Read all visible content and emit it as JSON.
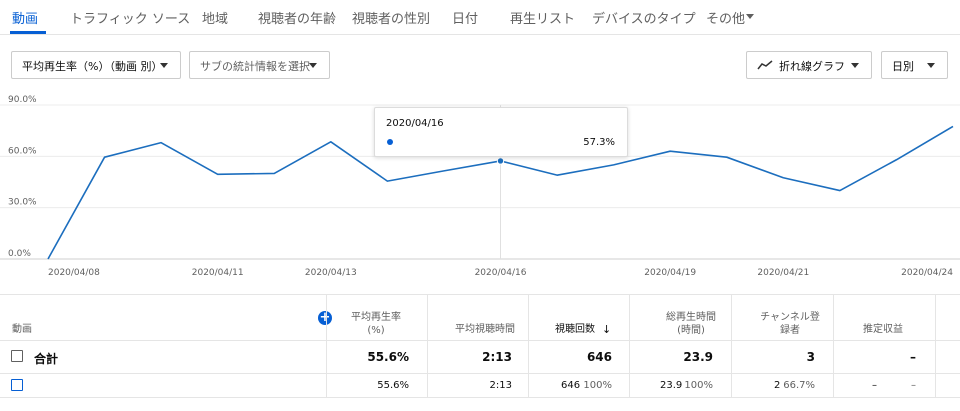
{
  "tabs": [
    {
      "label": "動画",
      "active": true
    },
    {
      "label": "トラフィック ソース"
    },
    {
      "label": "地域"
    },
    {
      "label": "視聴者の年齢"
    },
    {
      "label": "視聴者の性別"
    },
    {
      "label": "日付"
    },
    {
      "label": "再生リスト"
    },
    {
      "label": "デバイスのタイプ"
    },
    {
      "label": "その他"
    }
  ],
  "filters": {
    "metric": "平均再生率（%）（動画 別）",
    "secondary_placeholder": "サブの統計情報を選択",
    "chart_type": "折れ線グラフ",
    "granularity": "日別"
  },
  "tooltip": {
    "date": "2020/04/16",
    "value": "57.3%"
  },
  "chart_data": {
    "type": "line",
    "x": [
      "2020/04/08",
      "2020/04/09",
      "2020/04/10",
      "2020/04/11",
      "2020/04/12",
      "2020/04/13",
      "2020/04/14",
      "2020/04/15",
      "2020/04/16",
      "2020/04/17",
      "2020/04/18",
      "2020/04/19",
      "2020/04/20",
      "2020/04/21",
      "2020/04/22",
      "2020/04/23",
      "2020/04/24"
    ],
    "y": [
      0,
      59.5,
      68,
      49.5,
      50,
      68.5,
      45.5,
      51.5,
      57.3,
      49,
      55,
      63,
      59.5,
      47.5,
      40,
      58,
      77.5
    ],
    "xtick_labels": [
      "2020/04/08",
      "2020/04/11",
      "2020/04/13",
      "2020/04/16",
      "2020/04/19",
      "2020/04/21",
      "2020/04/24"
    ],
    "ytick_labels": [
      "0.0%",
      "30.0%",
      "60.0%",
      "90.0%"
    ],
    "ylim": [
      0,
      90
    ],
    "highlight": "2020/04/16",
    "color": "#1c6ebe"
  },
  "table": {
    "col_video": "動画",
    "headers": [
      {
        "label1": "平均再生率",
        "label2": "(%)"
      },
      {
        "label1": "平均視聴時間",
        "label2": ""
      },
      {
        "label1": "視聴回数",
        "label2": ""
      },
      {
        "label1": "総再生時間",
        "label2": "(時間)"
      },
      {
        "label1": "チャンネル登",
        "label2": "録者"
      },
      {
        "label1": "推定収益",
        "label2": ""
      }
    ],
    "total": {
      "label": "合計",
      "avg_pct": "55.6%",
      "avg_dur": "2:13",
      "views": "646",
      "watch_time": "23.9",
      "subs": "3",
      "revenue": "–"
    },
    "row1": {
      "avg_pct": "55.6%",
      "avg_dur": "2:13",
      "views": "646",
      "views_pct": "100%",
      "watch_time": "23.9",
      "watch_pct": "100%",
      "subs": "2",
      "subs_pct": "66.7%",
      "revenue": "–",
      "revenue_pct": "–"
    }
  }
}
